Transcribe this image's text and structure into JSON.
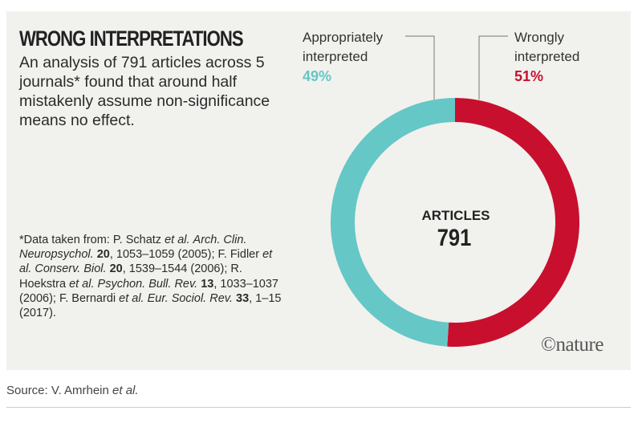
{
  "figure": {
    "title": "WRONG INTERPRETATIONS",
    "subtitle": "An analysis of 791 articles across 5 journals* found that around half mistakenly assume non-significance means no effect.",
    "footnote": {
      "intro": "*Data taken from: P. Schatz ",
      "refs": [
        {
          "etal": "et al.",
          "journal": "Arch. Clin. Neuropsychol.",
          "vol": "20",
          "pages_year": "1053–1059 (2005)"
        },
        {
          "author": "F. Fidler ",
          "etal": "et al.",
          "journal": "Conserv. Biol.",
          "vol": "20",
          "pages_year": "1539–1544 (2006)"
        },
        {
          "author": "R. Hoekstra ",
          "etal": "et al.",
          "journal": "Psychon. Bull. Rev.",
          "vol": "13",
          "pages_year": "1033–1037 (2006)"
        },
        {
          "author": "F. Bernardi ",
          "etal": "et al.",
          "journal": "Eur. Sociol. Rev.",
          "vol": "33",
          "pages_year": "1–15 (2017)"
        }
      ]
    },
    "logo_text": "©nature",
    "source_prefix": "Source: V. Amrhein ",
    "source_etal": "et al."
  },
  "colors": {
    "appropriate": "#65c7c6",
    "wrong": "#c8102e",
    "background": "#f1f1ee"
  },
  "chart_data": {
    "type": "pie",
    "variant": "donut",
    "center_label": "ARTICLES",
    "center_value": "791",
    "slices": [
      {
        "name": "Wrongly interpreted",
        "label_line1": "Wrongly",
        "label_line2": "interpreted",
        "value": 51,
        "value_label": "51%"
      },
      {
        "name": "Appropriately interpreted",
        "label_line1": "Appropriately",
        "label_line2": "interpreted",
        "value": 49,
        "value_label": "49%"
      }
    ]
  }
}
